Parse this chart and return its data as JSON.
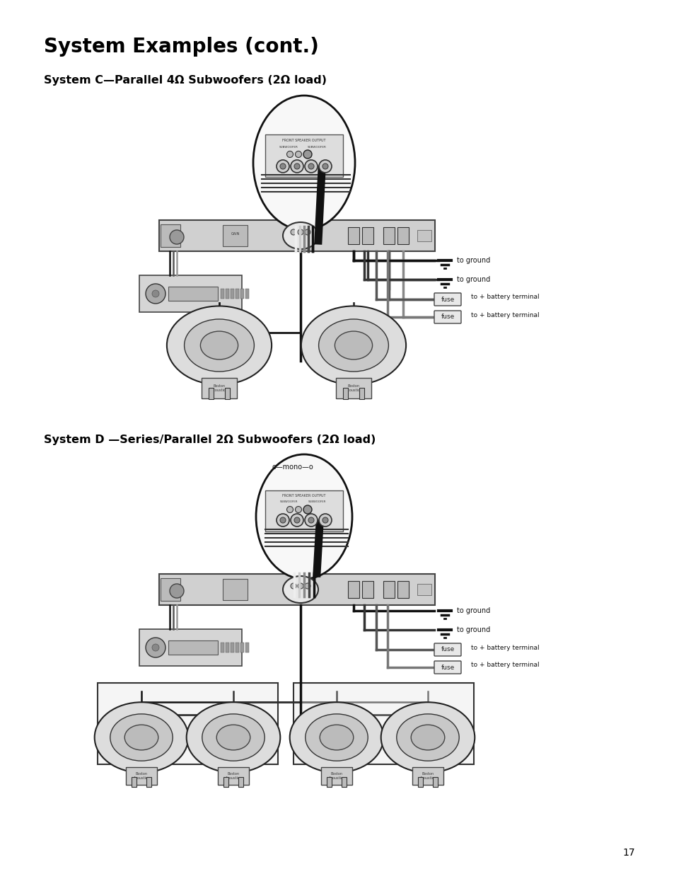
{
  "title": "System Examples (cont.)",
  "system_c_title": "System C—Parallel 4Ω Subwoofers (2Ω load)",
  "system_d_title": "System D —Series/Parallel 2Ω Subwoofers (2Ω load)",
  "page_number": "17",
  "bg_color": "#ffffff",
  "text_color": "#000000",
  "diagram_color": "#111111",
  "gray_light": "#e0e0e0",
  "gray_mid": "#b0b0b0",
  "gray_dark": "#666666"
}
